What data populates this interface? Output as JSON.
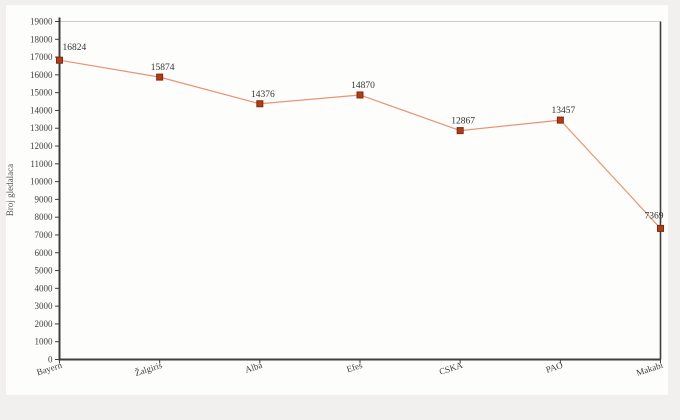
{
  "page": {
    "background_color": "#f1f0ee",
    "canvas_background_color": "#fdfdfc"
  },
  "chart_data": {
    "type": "line",
    "categories": [
      "Bayern",
      "Žalgiris",
      "Alba",
      "Efes",
      "CSKA",
      "PAO",
      "Makabi"
    ],
    "values": [
      16824,
      15874,
      14376,
      14870,
      12867,
      13457,
      7369
    ],
    "point_labels": [
      "16824",
      "15874",
      "14376",
      "14870",
      "12867",
      "13457",
      "7369"
    ],
    "title": "",
    "xlabel": "",
    "ylabel": "Broj gledalaca",
    "ylim": [
      0,
      19000
    ],
    "ytick_step": 1000,
    "ytick_labels": [
      "0",
      "1000",
      "2000",
      "3000",
      "4000",
      "5000",
      "6000",
      "7000",
      "8000",
      "9000",
      "10000",
      "11000",
      "12000",
      "13000",
      "14000",
      "15000",
      "16000",
      "17000",
      "18000",
      "19000"
    ],
    "grid": false,
    "legend_position": "none",
    "line_color": "#e89478",
    "marker_color": "#b23c17",
    "marker_edge_color": "#7d2a10",
    "axis_color": "#3f3f3f",
    "top_border_color": "#cccccc",
    "text_color": "#3f3f3f",
    "value_label_color": "#333333"
  }
}
